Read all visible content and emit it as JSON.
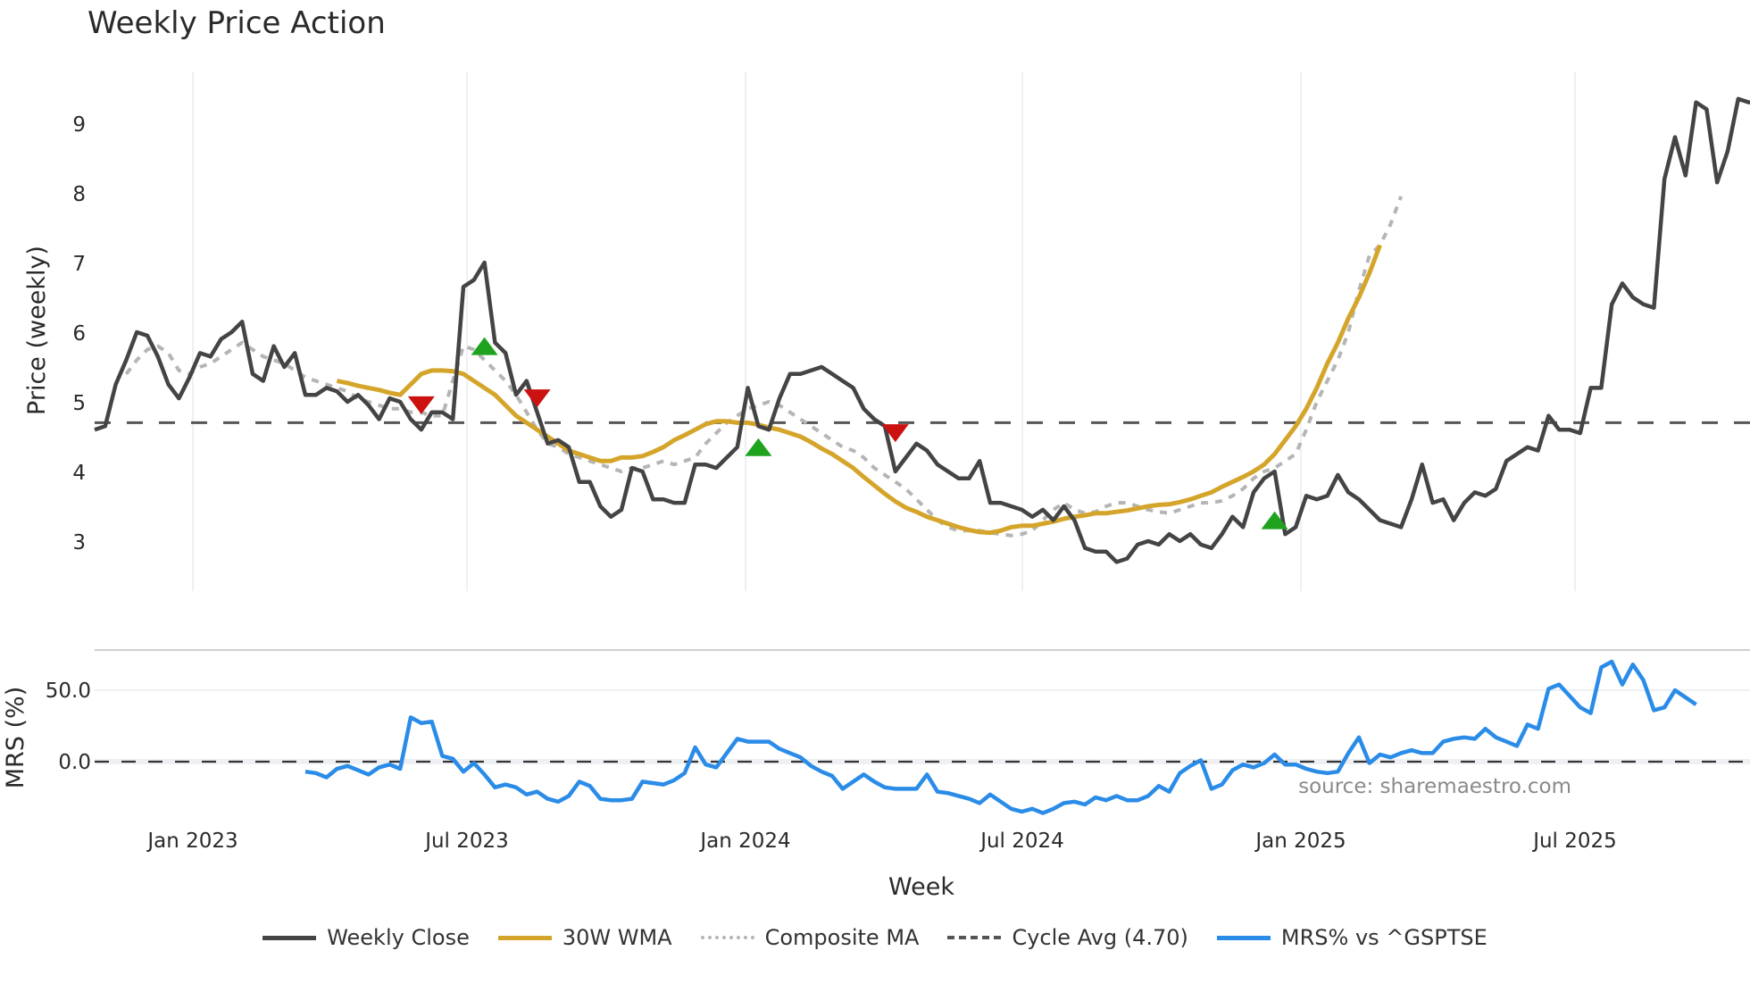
{
  "title": "Weekly Price Action",
  "source_note": "source: sharemaestro.com",
  "colors": {
    "close": "#444444",
    "wma": "#D4A52A",
    "composite": "#B5B5B5",
    "cycle": "#555555",
    "mrs": "#2B8CE8",
    "buy": "#1FA31F",
    "sell": "#CC1111",
    "grid": "#E8ECF0"
  },
  "legend": [
    {
      "key": "close",
      "label": "Weekly Close"
    },
    {
      "key": "wma",
      "label": "30W WMA"
    },
    {
      "key": "composite",
      "label": "Composite MA"
    },
    {
      "key": "cycle",
      "label": "Cycle Avg (4.70)"
    },
    {
      "key": "mrs",
      "label": "MRS% vs ^GSPTSE"
    }
  ],
  "chart_data": [
    {
      "type": "line",
      "title": "Weekly Price Action",
      "xlabel": "Week",
      "ylabel": "Price (weekly)",
      "x_tick_labels": [
        "Jan 2023",
        "Jul 2023",
        "Jan 2024",
        "Jul 2024",
        "Jan 2025",
        "Jul 2025"
      ],
      "y_ticks": [
        3,
        4,
        5,
        6,
        7,
        8,
        9
      ],
      "ylim": [
        2.25,
        9.75
      ],
      "x_start": "Nov 2022",
      "x_step": "1 week",
      "grid": true,
      "legend_position": "bottom",
      "cycle_avg": 4.7,
      "series": [
        {
          "name": "Weekly Close",
          "start_index": 0,
          "values": [
            4.6,
            4.65,
            5.25,
            5.6,
            6.0,
            5.95,
            5.65,
            5.25,
            5.05,
            5.35,
            5.7,
            5.65,
            5.9,
            6.0,
            6.15,
            5.4,
            5.3,
            5.8,
            5.5,
            5.7,
            5.1,
            5.1,
            5.2,
            5.15,
            5.0,
            5.1,
            4.95,
            4.75,
            5.05,
            5.0,
            4.75,
            4.6,
            4.85,
            4.85,
            4.75,
            6.65,
            6.75,
            7.0,
            5.85,
            5.7,
            5.1,
            5.3,
            4.85,
            4.4,
            4.45,
            4.35,
            3.85,
            3.85,
            3.5,
            3.35,
            3.45,
            4.05,
            4.0,
            3.6,
            3.6,
            3.55,
            3.55,
            4.1,
            4.1,
            4.05,
            4.2,
            4.35,
            5.2,
            4.65,
            4.6,
            5.05,
            5.4,
            5.4,
            5.45,
            5.5,
            5.4,
            5.3,
            5.2,
            4.9,
            4.75,
            4.65,
            4.0,
            4.2,
            4.4,
            4.3,
            4.1,
            4.0,
            3.9,
            3.9,
            4.15,
            3.55,
            3.55,
            3.5,
            3.45,
            3.35,
            3.45,
            3.3,
            3.5,
            3.3,
            2.9,
            2.85,
            2.85,
            2.7,
            2.75,
            2.95,
            3.0,
            2.95,
            3.1,
            3.0,
            3.1,
            2.95,
            2.9,
            3.1,
            3.35,
            3.2,
            3.7,
            3.9,
            4.0,
            3.1,
            3.2,
            3.65,
            3.6,
            3.65,
            3.95,
            3.7,
            3.6,
            3.45,
            3.3,
            3.25,
            3.2,
            3.6,
            4.1,
            3.55,
            3.6,
            3.3,
            3.55,
            3.7,
            3.65,
            3.75,
            4.15,
            4.25,
            4.35,
            4.3,
            4.8,
            4.6,
            4.6,
            4.55,
            5.2,
            5.2,
            6.4,
            6.7,
            6.5,
            6.4,
            6.35,
            8.2,
            8.8,
            8.25,
            9.3,
            9.2,
            8.15,
            8.6,
            9.35,
            9.3,
            9.3
          ]
        },
        {
          "name": "30W WMA",
          "start_index": 23,
          "values": [
            5.3,
            5.27,
            5.23,
            5.2,
            5.17,
            5.13,
            5.1,
            5.25,
            5.4,
            5.45,
            5.45,
            5.44,
            5.4,
            5.3,
            5.2,
            5.1,
            4.95,
            4.8,
            4.7,
            4.6,
            4.5,
            4.4,
            4.3,
            4.25,
            4.2,
            4.15,
            4.15,
            4.2,
            4.2,
            4.22,
            4.28,
            4.35,
            4.45,
            4.52,
            4.6,
            4.68,
            4.72,
            4.72,
            4.7,
            4.7,
            4.67,
            4.63,
            4.6,
            4.55,
            4.5,
            4.42,
            4.33,
            4.25,
            4.15,
            4.05,
            3.92,
            3.8,
            3.68,
            3.57,
            3.48,
            3.42,
            3.35,
            3.3,
            3.25,
            3.2,
            3.16,
            3.13,
            3.12,
            3.15,
            3.2,
            3.22,
            3.22,
            3.25,
            3.28,
            3.32,
            3.35,
            3.37,
            3.4,
            3.4,
            3.42,
            3.44,
            3.47,
            3.5,
            3.52,
            3.53,
            3.56,
            3.6,
            3.65,
            3.7,
            3.78,
            3.85,
            3.92,
            4.0,
            4.1,
            4.25,
            4.45,
            4.65,
            4.9,
            5.2,
            5.55,
            5.85,
            6.2,
            6.5,
            6.85,
            7.25
          ]
        },
        {
          "name": "Composite MA",
          "start_index": 3,
          "values": [
            5.4,
            5.6,
            5.75,
            5.8,
            5.7,
            5.45,
            5.4,
            5.5,
            5.55,
            5.65,
            5.75,
            5.85,
            5.75,
            5.65,
            5.6,
            5.55,
            5.45,
            5.35,
            5.3,
            5.25,
            5.2,
            5.15,
            5.05,
            5.0,
            4.95,
            4.9,
            4.9,
            4.85,
            4.85,
            4.8,
            4.8,
            5.3,
            5.8,
            5.75,
            5.6,
            5.45,
            5.3,
            5.1,
            4.85,
            4.6,
            4.4,
            4.35,
            4.25,
            4.2,
            4.15,
            4.1,
            4.05,
            4.0,
            4.05,
            4.05,
            4.1,
            4.15,
            4.1,
            4.15,
            4.2,
            4.4,
            4.55,
            4.7,
            4.8,
            4.9,
            4.95,
            5.0,
            4.95,
            4.85,
            4.75,
            4.65,
            4.55,
            4.45,
            4.35,
            4.3,
            4.2,
            4.05,
            3.95,
            3.85,
            3.75,
            3.6,
            3.45,
            3.3,
            3.2,
            3.15,
            3.15,
            3.15,
            3.12,
            3.1,
            3.08,
            3.1,
            3.15,
            3.3,
            3.45,
            3.55,
            3.45,
            3.4,
            3.42,
            3.5,
            3.55,
            3.55,
            3.5,
            3.45,
            3.42,
            3.4,
            3.45,
            3.5,
            3.55,
            3.55,
            3.58,
            3.65,
            3.75,
            3.9,
            4.0,
            4.05,
            4.15,
            4.25,
            4.6,
            5.0,
            5.3,
            5.6,
            6.0,
            6.6,
            7.1,
            7.25,
            7.55,
            7.95
          ]
        },
        {
          "name": "Cycle Avg (4.70)",
          "type": "hline",
          "value": 4.7
        }
      ],
      "signals": [
        {
          "type": "sell",
          "index": 31,
          "value": 4.95
        },
        {
          "type": "buy",
          "index": 37,
          "value": 5.8
        },
        {
          "type": "sell",
          "index": 42,
          "value": 5.05
        },
        {
          "type": "buy",
          "index": 63,
          "value": 4.35
        },
        {
          "type": "sell",
          "index": 76,
          "value": 4.55
        },
        {
          "type": "buy",
          "index": 112,
          "value": 3.3
        }
      ]
    },
    {
      "type": "line",
      "ylabel": "MRS (%)",
      "y_ticks": [
        0.0,
        50.0
      ],
      "y_tick_labels": [
        "0.0",
        "50.0"
      ],
      "ylim": [
        -40,
        78
      ],
      "zero_line": true,
      "series": [
        {
          "name": "MRS% vs ^GSPTSE",
          "start_index": 20,
          "values": [
            -7,
            -8,
            -11,
            -5,
            -3,
            -6,
            -9,
            -4,
            -2,
            -5,
            31,
            27,
            28,
            4,
            2,
            -7,
            -1,
            -9,
            -18,
            -16,
            -18,
            -23,
            -21,
            -26,
            -28,
            -24,
            -14,
            -17,
            -26,
            -27,
            -27,
            -26,
            -14,
            -15,
            -16,
            -13,
            -8,
            10,
            -2,
            -4,
            6,
            16,
            14,
            14,
            14,
            9,
            6,
            3,
            -3,
            -7,
            -10,
            -19,
            -14,
            -9,
            -14,
            -18,
            -19,
            -19,
            -19,
            -9,
            -21,
            -22,
            -24,
            -26,
            -29,
            -23,
            -28,
            -33,
            -35,
            -33,
            -36,
            -33,
            -29,
            -28,
            -30,
            -25,
            -27,
            -24,
            -27,
            -27,
            -24,
            -17,
            -21,
            -8,
            -3,
            1,
            -19,
            -16,
            -6,
            -2,
            -4,
            -1,
            5,
            -2,
            -2,
            -5,
            -7,
            -8,
            -7,
            6,
            17,
            -1,
            5,
            3,
            6,
            8,
            6,
            6,
            14,
            16,
            17,
            16,
            23,
            17,
            14,
            11,
            26,
            23,
            51,
            54,
            46,
            38,
            34,
            66,
            70,
            54,
            68,
            57,
            36,
            38,
            50,
            45,
            40
          ]
        }
      ]
    }
  ],
  "axes": {
    "x_label": "Week",
    "price_label": "Price (weekly)",
    "mrs_label": "MRS (%)"
  }
}
